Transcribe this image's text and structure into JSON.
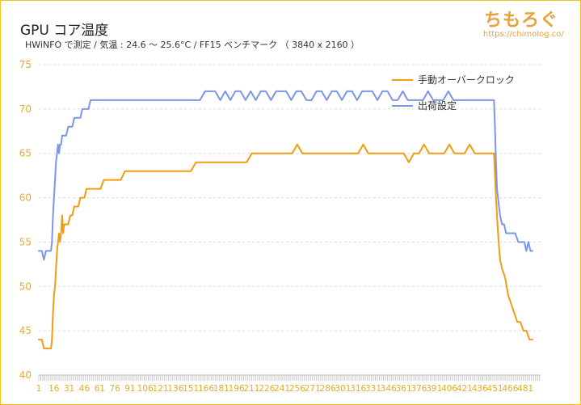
{
  "title": "GPU コア温度",
  "subtitle": "HWiNFO で測定 / 気温 : 24.6 〜 25.6°C / FF15 ベンチマーク （ 3840 x 2160 ）",
  "brand": {
    "name": "ちもろぐ",
    "url": "https://chimolog.co/"
  },
  "colors": {
    "accent": "#f0c419",
    "series_orange": "#f39c12",
    "series_blue": "#7b96e6",
    "axis_text": "#e3ad2b"
  },
  "chart_data": {
    "type": "line",
    "xlabel": "",
    "ylabel": "",
    "ylim": [
      40,
      75
    ],
    "xlim": [
      1,
      496
    ],
    "yticks": [
      40,
      45,
      50,
      55,
      60,
      65,
      70,
      75
    ],
    "xticks": [
      1,
      16,
      31,
      46,
      61,
      76,
      91,
      106,
      121,
      136,
      151,
      166,
      181,
      196,
      211,
      226,
      241,
      256,
      271,
      286,
      301,
      316,
      331,
      346,
      361,
      376,
      391,
      406,
      421,
      436,
      451,
      466,
      481
    ],
    "grid": true,
    "legend_position": "top-right",
    "series": [
      {
        "name": "手動オーバークロック",
        "color": "#f39c12",
        "points": [
          [
            1,
            44
          ],
          [
            4,
            44
          ],
          [
            6,
            43
          ],
          [
            13,
            43
          ],
          [
            14,
            44
          ],
          [
            15,
            47
          ],
          [
            16,
            49
          ],
          [
            17,
            50
          ],
          [
            18,
            52
          ],
          [
            19,
            54
          ],
          [
            20,
            55
          ],
          [
            21,
            56
          ],
          [
            22,
            55
          ],
          [
            23,
            56
          ],
          [
            24,
            58
          ],
          [
            25,
            56
          ],
          [
            26,
            57
          ],
          [
            28,
            57
          ],
          [
            30,
            57
          ],
          [
            32,
            58
          ],
          [
            34,
            58
          ],
          [
            36,
            59
          ],
          [
            38,
            59
          ],
          [
            40,
            59
          ],
          [
            42,
            60
          ],
          [
            44,
            60
          ],
          [
            46,
            60
          ],
          [
            48,
            61
          ],
          [
            50,
            61
          ],
          [
            52,
            61
          ],
          [
            55,
            61
          ],
          [
            57,
            61
          ],
          [
            59,
            61
          ],
          [
            62,
            61
          ],
          [
            65,
            62
          ],
          [
            67,
            62
          ],
          [
            70,
            62
          ],
          [
            73,
            62
          ],
          [
            76,
            62
          ],
          [
            79,
            62
          ],
          [
            82,
            62
          ],
          [
            86,
            63
          ],
          [
            89,
            63
          ],
          [
            93,
            63
          ],
          [
            97,
            63
          ],
          [
            101,
            63
          ],
          [
            106,
            63
          ],
          [
            111,
            63
          ],
          [
            116,
            63
          ],
          [
            121,
            63
          ],
          [
            126,
            63
          ],
          [
            131,
            63
          ],
          [
            136,
            63
          ],
          [
            141,
            63
          ],
          [
            146,
            63
          ],
          [
            151,
            63
          ],
          [
            156,
            64
          ],
          [
            161,
            64
          ],
          [
            166,
            64
          ],
          [
            171,
            64
          ],
          [
            176,
            64
          ],
          [
            181,
            64
          ],
          [
            186,
            64
          ],
          [
            191,
            64
          ],
          [
            196,
            64
          ],
          [
            201,
            64
          ],
          [
            206,
            64
          ],
          [
            211,
            65
          ],
          [
            216,
            65
          ],
          [
            221,
            65
          ],
          [
            226,
            65
          ],
          [
            231,
            65
          ],
          [
            236,
            65
          ],
          [
            241,
            65
          ],
          [
            246,
            65
          ],
          [
            251,
            65
          ],
          [
            256,
            66
          ],
          [
            261,
            65
          ],
          [
            266,
            65
          ],
          [
            271,
            65
          ],
          [
            276,
            65
          ],
          [
            281,
            65
          ],
          [
            286,
            65
          ],
          [
            291,
            65
          ],
          [
            296,
            65
          ],
          [
            301,
            65
          ],
          [
            306,
            65
          ],
          [
            311,
            65
          ],
          [
            316,
            65
          ],
          [
            321,
            66
          ],
          [
            326,
            65
          ],
          [
            331,
            65
          ],
          [
            336,
            65
          ],
          [
            341,
            65
          ],
          [
            346,
            65
          ],
          [
            351,
            65
          ],
          [
            356,
            65
          ],
          [
            361,
            65
          ],
          [
            366,
            64
          ],
          [
            371,
            65
          ],
          [
            376,
            65
          ],
          [
            381,
            66
          ],
          [
            386,
            65
          ],
          [
            391,
            65
          ],
          [
            396,
            65
          ],
          [
            401,
            65
          ],
          [
            406,
            66
          ],
          [
            411,
            65
          ],
          [
            416,
            65
          ],
          [
            421,
            65
          ],
          [
            426,
            66
          ],
          [
            431,
            65
          ],
          [
            436,
            65
          ],
          [
            441,
            65
          ],
          [
            446,
            65
          ],
          [
            450,
            65
          ],
          [
            452,
            60
          ],
          [
            454,
            56
          ],
          [
            456,
            53
          ],
          [
            458,
            52
          ],
          [
            461,
            51
          ],
          [
            464,
            49
          ],
          [
            467,
            48
          ],
          [
            470,
            47
          ],
          [
            473,
            46
          ],
          [
            476,
            46
          ],
          [
            479,
            45
          ],
          [
            482,
            45
          ],
          [
            485,
            44
          ],
          [
            488,
            44
          ]
        ]
      },
      {
        "name": "出荷設定",
        "color": "#7b96e6",
        "points": [
          [
            1,
            54
          ],
          [
            4,
            54
          ],
          [
            6,
            53
          ],
          [
            8,
            54
          ],
          [
            11,
            54
          ],
          [
            13,
            54
          ],
          [
            14,
            55
          ],
          [
            15,
            58
          ],
          [
            16,
            60
          ],
          [
            17,
            62
          ],
          [
            18,
            64
          ],
          [
            19,
            65
          ],
          [
            20,
            66
          ],
          [
            21,
            65
          ],
          [
            22,
            66
          ],
          [
            23,
            66
          ],
          [
            24,
            67
          ],
          [
            26,
            67
          ],
          [
            28,
            67
          ],
          [
            30,
            68
          ],
          [
            32,
            68
          ],
          [
            34,
            68
          ],
          [
            36,
            69
          ],
          [
            38,
            69
          ],
          [
            40,
            69
          ],
          [
            42,
            69
          ],
          [
            44,
            70
          ],
          [
            46,
            70
          ],
          [
            48,
            70
          ],
          [
            50,
            70
          ],
          [
            52,
            71
          ],
          [
            55,
            71
          ],
          [
            57,
            71
          ],
          [
            60,
            71
          ],
          [
            63,
            71
          ],
          [
            66,
            71
          ],
          [
            70,
            71
          ],
          [
            75,
            71
          ],
          [
            80,
            71
          ],
          [
            85,
            71
          ],
          [
            90,
            71
          ],
          [
            95,
            71
          ],
          [
            100,
            71
          ],
          [
            105,
            71
          ],
          [
            110,
            71
          ],
          [
            115,
            71
          ],
          [
            120,
            71
          ],
          [
            125,
            71
          ],
          [
            130,
            71
          ],
          [
            135,
            71
          ],
          [
            140,
            71
          ],
          [
            145,
            71
          ],
          [
            150,
            71
          ],
          [
            155,
            71
          ],
          [
            160,
            71
          ],
          [
            165,
            72
          ],
          [
            170,
            72
          ],
          [
            175,
            72
          ],
          [
            180,
            71
          ],
          [
            185,
            72
          ],
          [
            190,
            71
          ],
          [
            195,
            72
          ],
          [
            200,
            72
          ],
          [
            205,
            71
          ],
          [
            210,
            72
          ],
          [
            215,
            71
          ],
          [
            220,
            72
          ],
          [
            225,
            72
          ],
          [
            230,
            71
          ],
          [
            235,
            72
          ],
          [
            240,
            72
          ],
          [
            245,
            72
          ],
          [
            250,
            71
          ],
          [
            255,
            72
          ],
          [
            260,
            72
          ],
          [
            265,
            71
          ],
          [
            270,
            71
          ],
          [
            275,
            72
          ],
          [
            280,
            72
          ],
          [
            285,
            71
          ],
          [
            290,
            72
          ],
          [
            295,
            72
          ],
          [
            300,
            71
          ],
          [
            305,
            72
          ],
          [
            310,
            72
          ],
          [
            315,
            71
          ],
          [
            320,
            72
          ],
          [
            325,
            72
          ],
          [
            330,
            72
          ],
          [
            335,
            71
          ],
          [
            340,
            72
          ],
          [
            345,
            72
          ],
          [
            350,
            71
          ],
          [
            355,
            71
          ],
          [
            360,
            72
          ],
          [
            365,
            71
          ],
          [
            370,
            71
          ],
          [
            375,
            71
          ],
          [
            380,
            71
          ],
          [
            385,
            72
          ],
          [
            390,
            71
          ],
          [
            395,
            71
          ],
          [
            400,
            71
          ],
          [
            405,
            72
          ],
          [
            410,
            71
          ],
          [
            415,
            71
          ],
          [
            420,
            71
          ],
          [
            425,
            71
          ],
          [
            430,
            71
          ],
          [
            435,
            71
          ],
          [
            440,
            71
          ],
          [
            445,
            71
          ],
          [
            450,
            71
          ],
          [
            451,
            68
          ],
          [
            452,
            64
          ],
          [
            453,
            61
          ],
          [
            454,
            60
          ],
          [
            456,
            58
          ],
          [
            458,
            57
          ],
          [
            460,
            57
          ],
          [
            462,
            56
          ],
          [
            465,
            56
          ],
          [
            468,
            56
          ],
          [
            471,
            56
          ],
          [
            474,
            55
          ],
          [
            477,
            55
          ],
          [
            480,
            55
          ],
          [
            482,
            54
          ],
          [
            484,
            55
          ],
          [
            486,
            54
          ],
          [
            488,
            54
          ]
        ]
      }
    ]
  }
}
